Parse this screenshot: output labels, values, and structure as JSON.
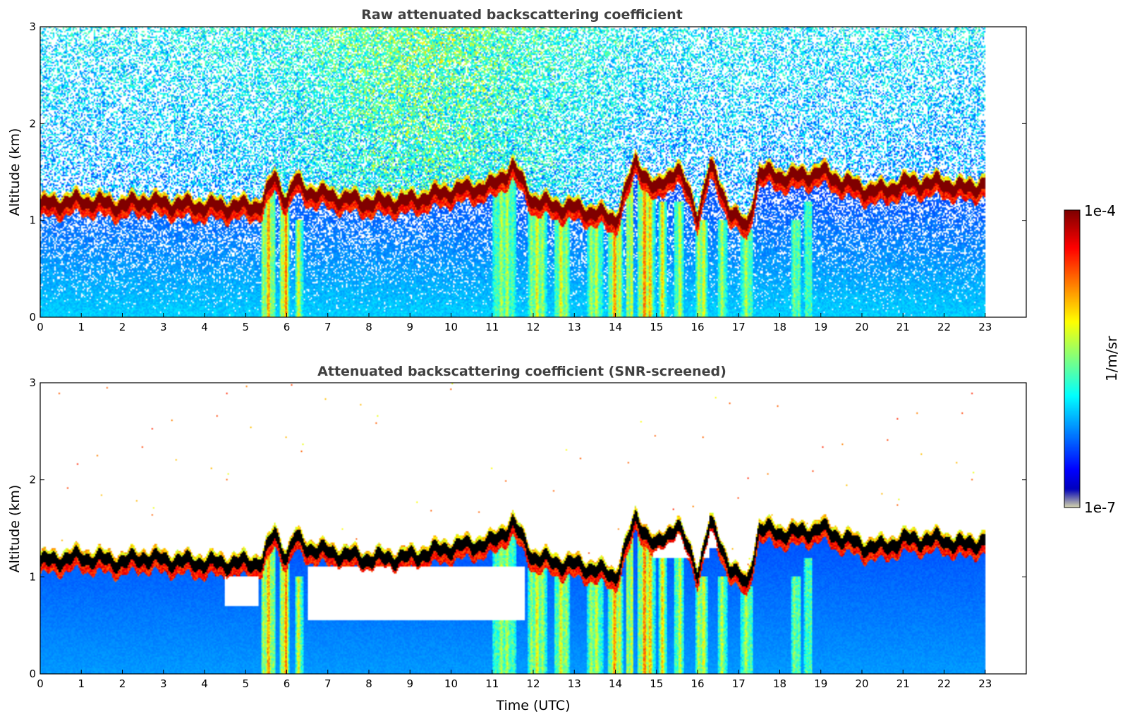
{
  "chart_data": [
    {
      "type": "heatmap",
      "title": "Raw attenuated backscattering coefficient",
      "xlabel": "",
      "ylabel": "Altitude (km)",
      "xlim": [
        0,
        24
      ],
      "ylim": [
        0,
        3
      ],
      "data_x_range": [
        0,
        23
      ],
      "x_ticks": [
        "0",
        "1",
        "2",
        "3",
        "4",
        "5",
        "6",
        "7",
        "8",
        "9",
        "10",
        "11",
        "12",
        "13",
        "14",
        "15",
        "16",
        "17",
        "18",
        "19",
        "20",
        "21",
        "22",
        "23"
      ],
      "y_ticks": [
        "0",
        "1",
        "2",
        "3"
      ],
      "noise": "raw",
      "cloud_base_km": [
        [
          0.0,
          1.15
        ],
        [
          0.5,
          1.18
        ],
        [
          1.0,
          1.2
        ],
        [
          2.0,
          1.15
        ],
        [
          2.5,
          1.2
        ],
        [
          3.0,
          1.17
        ],
        [
          4.0,
          1.14
        ],
        [
          5.0,
          1.14
        ],
        [
          5.4,
          1.16
        ],
        [
          5.7,
          1.45
        ],
        [
          6.0,
          1.2
        ],
        [
          6.2,
          1.4
        ],
        [
          6.5,
          1.3
        ],
        [
          7.0,
          1.25
        ],
        [
          8.0,
          1.18
        ],
        [
          9.0,
          1.2
        ],
        [
          10.0,
          1.3
        ],
        [
          11.0,
          1.35
        ],
        [
          11.5,
          1.55
        ],
        [
          12.0,
          1.2
        ],
        [
          12.5,
          1.15
        ],
        [
          13.0,
          1.12
        ],
        [
          13.5,
          1.08
        ],
        [
          14.0,
          1.0
        ],
        [
          14.5,
          1.6
        ],
        [
          15.0,
          1.3
        ],
        [
          15.5,
          1.55
        ],
        [
          16.0,
          1.05
        ],
        [
          16.3,
          1.55
        ],
        [
          16.8,
          1.1
        ],
        [
          17.2,
          0.9
        ],
        [
          17.5,
          1.5
        ],
        [
          18.0,
          1.45
        ],
        [
          18.5,
          1.45
        ],
        [
          19.0,
          1.5
        ],
        [
          19.5,
          1.4
        ],
        [
          20.0,
          1.32
        ],
        [
          20.5,
          1.3
        ],
        [
          21.0,
          1.38
        ],
        [
          22.0,
          1.38
        ],
        [
          22.5,
          1.32
        ],
        [
          23.0,
          1.38
        ]
      ],
      "precipitation_shafts": [
        {
          "t": 5.55,
          "w": 0.18,
          "top": 1.4,
          "i": 0.7
        },
        {
          "t": 5.95,
          "w": 0.12,
          "top": 1.3,
          "i": 0.85
        },
        {
          "t": 6.3,
          "w": 0.1,
          "top": 1.0,
          "i": 0.5
        },
        {
          "t": 11.3,
          "w": 0.3,
          "top": 1.5,
          "i": 0.4
        },
        {
          "t": 12.1,
          "w": 0.25,
          "top": 1.2,
          "i": 0.5
        },
        {
          "t": 12.7,
          "w": 0.2,
          "top": 1.1,
          "i": 0.5
        },
        {
          "t": 13.5,
          "w": 0.2,
          "top": 1.0,
          "i": 0.45
        },
        {
          "t": 14.0,
          "w": 0.18,
          "top": 1.0,
          "i": 0.75
        },
        {
          "t": 14.35,
          "w": 0.1,
          "top": 1.5,
          "i": 0.6
        },
        {
          "t": 14.75,
          "w": 0.22,
          "top": 1.5,
          "i": 0.8
        },
        {
          "t": 15.15,
          "w": 0.1,
          "top": 1.2,
          "i": 0.6
        },
        {
          "t": 15.55,
          "w": 0.12,
          "top": 1.2,
          "i": 0.45
        },
        {
          "t": 16.1,
          "w": 0.15,
          "top": 1.0,
          "i": 0.55
        },
        {
          "t": 16.6,
          "w": 0.12,
          "top": 1.0,
          "i": 0.4
        },
        {
          "t": 17.2,
          "w": 0.15,
          "top": 0.9,
          "i": 0.4
        },
        {
          "t": 18.4,
          "w": 0.12,
          "top": 1.0,
          "i": 0.35
        },
        {
          "t": 18.7,
          "w": 0.1,
          "top": 1.2,
          "i": 0.3
        }
      ]
    },
    {
      "type": "heatmap",
      "title": "Attenuated backscattering coefficient (SNR-screened)",
      "xlabel": "Time (UTC)",
      "ylabel": "Altitude (km)",
      "xlim": [
        0,
        24
      ],
      "ylim": [
        0,
        3
      ],
      "data_x_range": [
        0,
        23
      ],
      "x_ticks": [
        "0",
        "1",
        "2",
        "3",
        "4",
        "5",
        "6",
        "7",
        "8",
        "9",
        "10",
        "11",
        "12",
        "13",
        "14",
        "15",
        "16",
        "17",
        "18",
        "19",
        "20",
        "21",
        "22",
        "23"
      ],
      "y_ticks": [
        "0",
        "1",
        "2",
        "3"
      ],
      "noise": "screened",
      "screened_gaps": [
        {
          "t0": 4.5,
          "t1": 5.3,
          "z0": 0.7,
          "z1": 1.0
        },
        {
          "t0": 6.5,
          "t1": 11.8,
          "z0": 0.55,
          "z1": 1.1
        },
        {
          "t0": 12.9,
          "t1": 13.9,
          "z0": 1.3,
          "z1": 1.6
        },
        {
          "t0": 14.9,
          "t1": 16.3,
          "z0": 1.2,
          "z1": 1.6
        },
        {
          "t0": 16.3,
          "t1": 16.9,
          "z0": 1.3,
          "z1": 1.5
        }
      ]
    }
  ],
  "colorbar": {
    "label": "1/m/sr",
    "max_label": "1e-4",
    "min_label": "1e-7",
    "colormap": "jet",
    "scale": "log"
  },
  "colors": {
    "background": "#ffffff",
    "title": "#404040",
    "cloud_core": "#7f0000",
    "screened_core": "#000000"
  }
}
